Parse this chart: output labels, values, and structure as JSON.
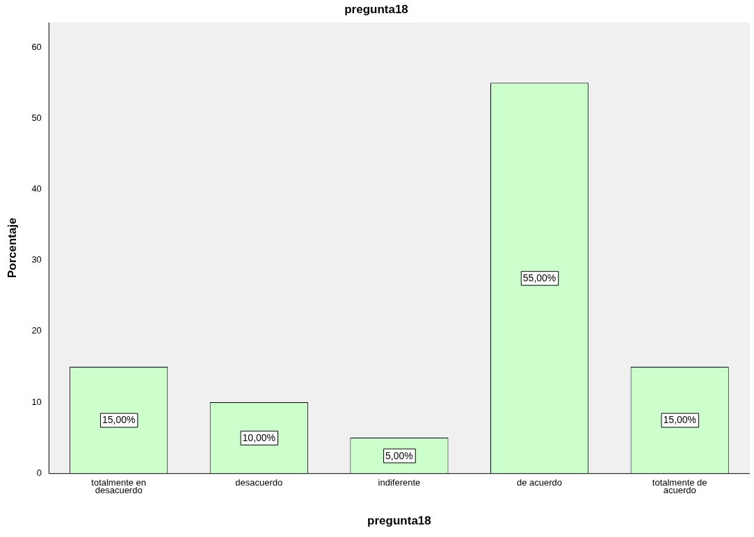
{
  "chart_data": {
    "type": "bar",
    "title": "pregunta18",
    "xlabel": "pregunta18",
    "ylabel": "Porcentaje",
    "categories": [
      "totalmente en desacuerdo",
      "desacuerdo",
      "indiferente",
      "de acuerdo",
      "totalmente de acuerdo"
    ],
    "values": [
      15,
      10,
      5,
      55,
      15
    ],
    "value_labels": [
      "15,00%",
      "10,00%",
      "5,00%",
      "55,00%",
      "15,00%"
    ],
    "color": "#ccffcc",
    "ylim": [
      0,
      63.5
    ],
    "yticks": [
      0,
      10,
      20,
      30,
      40,
      50,
      60
    ],
    "grid": false,
    "legend": false
  }
}
